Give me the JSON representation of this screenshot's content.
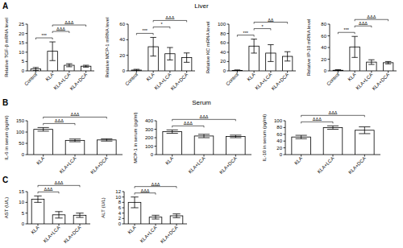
{
  "panels": [
    {
      "label": "A",
      "title": "Liver"
    },
    {
      "label": "B",
      "title": "Serum"
    },
    {
      "label": "C"
    }
  ],
  "chart_data": [
    {
      "type": "bar",
      "y_label": "Relative TGF-β mRNA level",
      "categories": [
        "Control",
        "KLA",
        "KLA+LCA",
        "KLA+DCA"
      ],
      "values": [
        1,
        10.5,
        3,
        2.5
      ],
      "errors": [
        0.8,
        5,
        0.8,
        0.5
      ],
      "color": "#ffffff",
      "ylim": [
        0,
        25
      ],
      "yticks": [
        0,
        5,
        10,
        15,
        20,
        25
      ],
      "annotations": [
        {
          "text": "***",
          "from": 0,
          "to": 1
        },
        {
          "text": "ΔΔΔ",
          "from": 1,
          "to": 2
        },
        {
          "text": "ΔΔΔ",
          "from": 1,
          "to": 3
        }
      ]
    },
    {
      "type": "bar",
      "y_label": "Relative MCP-1 mRNA level",
      "categories": [
        "Control",
        "KLA",
        "KLA+LCA",
        "KLA+DCA"
      ],
      "values": [
        1,
        31,
        22,
        17
      ],
      "errors": [
        1,
        12,
        8,
        6
      ],
      "color": "#ffffff",
      "ylim": [
        0,
        60
      ],
      "yticks": [
        0,
        20,
        40,
        60
      ],
      "annotations": [
        {
          "text": "***",
          "from": 0,
          "to": 1
        },
        {
          "text": "*",
          "from": 1,
          "to": 2
        },
        {
          "text": "ΔΔΔ",
          "from": 1,
          "to": 3
        }
      ]
    },
    {
      "type": "bar",
      "y_label": "Relative KC mRNA level",
      "categories": [
        "Control",
        "KLA",
        "KLA+LCA",
        "KLA+DCA"
      ],
      "values": [
        1,
        53,
        38,
        31
      ],
      "errors": [
        1,
        15,
        18,
        10
      ],
      "color": "#ffffff",
      "ylim": [
        0,
        100
      ],
      "yticks": [
        0,
        20,
        40,
        60,
        80,
        100
      ],
      "annotations": [
        {
          "text": "***",
          "from": 0,
          "to": 1
        },
        {
          "text": "*",
          "from": 1,
          "to": 2
        },
        {
          "text": "ΔΔ",
          "from": 1,
          "to": 3
        }
      ]
    },
    {
      "type": "bar",
      "y_label": "Relative IP-10 mRNA level",
      "categories": [
        "Control",
        "KLA",
        "KLA+LCA",
        "KLA+DCA"
      ],
      "values": [
        1,
        41,
        15,
        14
      ],
      "errors": [
        1,
        18,
        4,
        2
      ],
      "color": "#ffffff",
      "ylim": [
        0,
        80
      ],
      "yticks": [
        0,
        20,
        40,
        60,
        80
      ],
      "annotations": [
        {
          "text": "***",
          "from": 0,
          "to": 1
        },
        {
          "text": "ΔΔΔ",
          "from": 1,
          "to": 2
        },
        {
          "text": "ΔΔΔ",
          "from": 1,
          "to": 3
        }
      ]
    },
    {
      "type": "bar",
      "y_label": "IL-6 in serum (pg/ml)",
      "categories": [
        "KLA",
        "KLA+LCA",
        "KLA+DCA"
      ],
      "values": [
        112,
        63,
        65
      ],
      "errors": [
        8,
        6,
        5
      ],
      "color": "#ffffff",
      "ylim": [
        0,
        150
      ],
      "yticks": [
        0,
        50,
        100,
        150
      ],
      "annotations": [
        {
          "text": "ΔΔΔ",
          "from": 0,
          "to": 1
        },
        {
          "text": "ΔΔΔ",
          "from": 0,
          "to": 2
        }
      ]
    },
    {
      "type": "bar",
      "y_label": "MCP-1 in serum (pg/ml)",
      "categories": [
        "KLA",
        "KLA+LCA",
        "KLA+DCA"
      ],
      "values": [
        272,
        220,
        215
      ],
      "errors": [
        20,
        20,
        15
      ],
      "color": "#ffffff",
      "ylim": [
        0,
        400
      ],
      "yticks": [
        0,
        100,
        200,
        300,
        400
      ],
      "annotations": [
        {
          "text": "ΔΔΔ",
          "from": 0,
          "to": 1
        },
        {
          "text": "ΔΔΔ",
          "from": 0,
          "to": 2
        }
      ]
    },
    {
      "type": "bar",
      "y_label": "IL-10 in serum (pg/ml)",
      "categories": [
        "KLA",
        "KLA+LCA",
        "KLA+DCA"
      ],
      "values": [
        52,
        80,
        72
      ],
      "errors": [
        5,
        5,
        10
      ],
      "color": "#ffffff",
      "ylim": [
        0,
        100
      ],
      "yticks": [
        0,
        20,
        40,
        60,
        80,
        100
      ],
      "annotations": [
        {
          "text": "ΔΔΔ",
          "from": 0,
          "to": 1
        },
        {
          "text": "ΔΔΔ",
          "from": 0,
          "to": 2
        }
      ]
    },
    {
      "type": "bar",
      "y_label": "AST (U/L)",
      "categories": [
        "KLA",
        "KLA+LCA",
        "KLA+DCA"
      ],
      "values": [
        11.5,
        4.2,
        4
      ],
      "errors": [
        1.5,
        1.5,
        1
      ],
      "color": "#ffffff",
      "ylim": [
        0,
        15
      ],
      "yticks": [
        0,
        5,
        10,
        15
      ],
      "annotations": [
        {
          "text": "ΔΔΔ",
          "from": 0,
          "to": 1
        },
        {
          "text": "ΔΔΔ",
          "from": 0,
          "to": 2
        }
      ]
    },
    {
      "type": "bar",
      "y_label": "ALT (U/L)",
      "categories": [
        "KLA",
        "KLA+LCA",
        "KLA+DCA"
      ],
      "values": [
        8,
        2.5,
        3
      ],
      "errors": [
        2,
        0.7,
        0.7
      ],
      "color": "#ffffff",
      "ylim": [
        0,
        12
      ],
      "yticks": [
        0,
        2,
        4,
        6,
        8,
        10,
        12
      ],
      "annotations": [
        {
          "text": "ΔΔΔ",
          "from": 0,
          "to": 1
        },
        {
          "text": "ΔΔΔ",
          "from": 0,
          "to": 2
        }
      ]
    }
  ]
}
